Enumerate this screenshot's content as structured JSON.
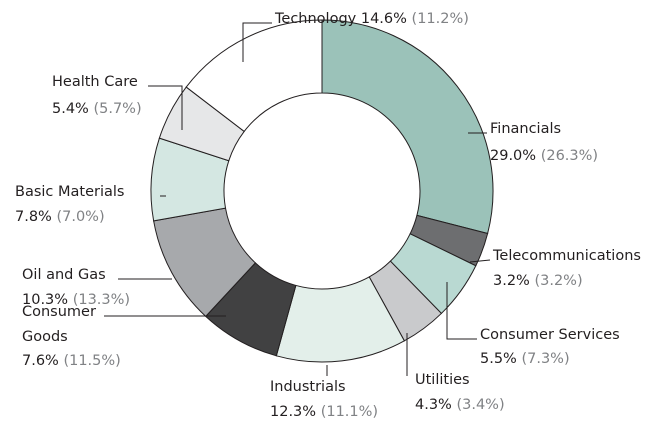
{
  "chart_data": {
    "type": "donut",
    "categories": [
      "Financials",
      "Telecommunications",
      "Consumer Services",
      "Utilities",
      "Industrials",
      "Consumer Goods",
      "Oil and Gas",
      "Basic Materials",
      "Health Care",
      "Technology"
    ],
    "values": [
      29.0,
      3.2,
      5.5,
      4.3,
      12.3,
      7.6,
      10.3,
      7.8,
      5.4,
      14.6
    ],
    "value_labels": [
      "29.0%",
      "3.2%",
      "5.5%",
      "4.3%",
      "12.3%",
      "7.6%",
      "10.3%",
      "7.8%",
      "5.4%",
      "14.6%"
    ],
    "comparison_values": [
      26.3,
      3.2,
      7.3,
      3.4,
      11.1,
      11.5,
      13.3,
      7.0,
      5.7,
      11.2
    ],
    "comparison_labels": [
      "(26.3%)",
      "(3.2%)",
      "(7.3%)",
      "(3.4%)",
      "(11.1%)",
      "(11.5%)",
      "(13.3%)",
      "(7.0%)",
      "(5.7%)",
      "(11.2%)"
    ],
    "colors": [
      "#9bc2b9",
      "#6d6e70",
      "#b9d9d2",
      "#c9cacc",
      "#e3efea",
      "#414142",
      "#a7a9ac",
      "#d4e7e2",
      "#e6e7e8",
      "#ffffff"
    ]
  }
}
